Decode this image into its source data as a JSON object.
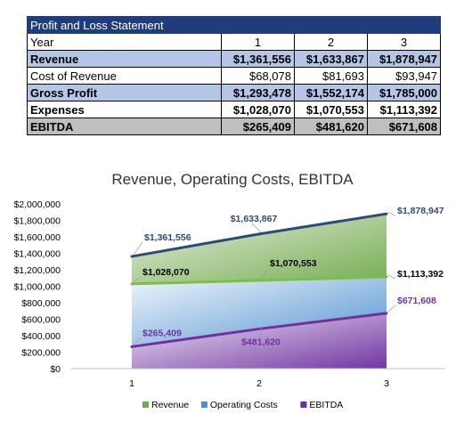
{
  "table": {
    "title": "Profit and Loss Statement",
    "header": {
      "label": "Year",
      "years": [
        "1",
        "2",
        "3"
      ]
    },
    "rows": [
      {
        "label": "Revenue",
        "values": [
          "$1,361,556",
          "$1,633,867",
          "$1,878,947"
        ],
        "style": "hl"
      },
      {
        "label": "Cost of Revenue",
        "values": [
          "$68,078",
          "$81,693",
          "$93,947"
        ],
        "style": "plain"
      },
      {
        "label": "Gross Profit",
        "values": [
          "$1,293,478",
          "$1,552,174",
          "$1,785,000"
        ],
        "style": "hl"
      },
      {
        "label": "Expenses",
        "values": [
          "$1,028,070",
          "$1,070,553",
          "$1,113,392"
        ],
        "style": "bold"
      },
      {
        "label": "EBITDA",
        "values": [
          "$265,409",
          "$481,620",
          "$671,608"
        ],
        "style": "gray"
      }
    ]
  },
  "chart_data": {
    "type": "area",
    "title": "Revenue, Operating Costs, EBITDA",
    "x": [
      1,
      2,
      3
    ],
    "ylim": [
      0,
      2000000
    ],
    "yticks": [
      "$0",
      "$200,000",
      "$400,000",
      "$600,000",
      "$800,000",
      "$1,000,000",
      "$1,200,000",
      "$1,400,000",
      "$1,600,000",
      "$1,800,000",
      "$2,000,000"
    ],
    "xticks": [
      "1",
      "2",
      "3"
    ],
    "legend_position": "bottom",
    "series": [
      {
        "name": "Revenue",
        "values": [
          1361556,
          1633867,
          1878947
        ],
        "labels": [
          "$1,361,556",
          "$1,633,867",
          "$1,878,947"
        ],
        "line_color": "#2e4a7a",
        "fill_light": "#e2eedb",
        "fill_dark": "#70a84a",
        "label_color": "#2e4a7a"
      },
      {
        "name": "Operating Costs",
        "values": [
          1028070,
          1070553,
          1113392
        ],
        "labels": [
          "$1,028,070",
          "$1,070,553",
          "$1,113,392"
        ],
        "line_color": "#7bc043",
        "fill_light": "#eef4fb",
        "fill_dark": "#4b8fcf",
        "label_color": "#000000"
      },
      {
        "name": "EBITDA",
        "values": [
          265409,
          481620,
          671608
        ],
        "labels": [
          "$265,409",
          "$481,620",
          "$671,608"
        ],
        "line_color": "#7030a0",
        "fill_light": "#efe6f5",
        "fill_dark": "#6a2c9e",
        "label_color": "#7030a0"
      }
    ]
  }
}
